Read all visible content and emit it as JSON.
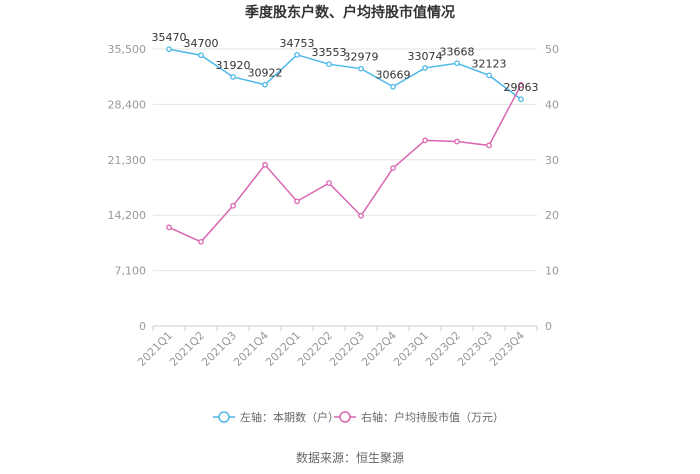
{
  "chart_data": {
    "type": "line",
    "title": "季度股东户数、户均持股市值情况",
    "categories": [
      "2021Q1",
      "2021Q2",
      "2021Q3",
      "2021Q4",
      "2022Q1",
      "2022Q2",
      "2022Q3",
      "2022Q4",
      "2023Q1",
      "2023Q2",
      "2023Q3",
      "2023Q4"
    ],
    "y_left": {
      "ticks": [
        "0",
        "7,100",
        "14,200",
        "21,300",
        "28,400",
        "35,500"
      ],
      "ylim": [
        0,
        35500
      ]
    },
    "y_right": {
      "ticks": [
        "0",
        "10",
        "20",
        "30",
        "40",
        "50"
      ],
      "ylim": [
        0,
        50
      ]
    },
    "series": [
      {
        "name": "左轴：本期数（户）",
        "axis": "left",
        "color": "#4db8e8",
        "values": [
          35470,
          34700,
          31920,
          30922,
          34753,
          33553,
          32979,
          30669,
          33074,
          33668,
          32123,
          29063
        ],
        "labels": [
          "35470",
          "34700",
          "31920",
          "30922",
          "34753",
          "33553",
          "32979",
          "30669",
          "33074",
          "33668",
          "32123",
          "29063"
        ]
      },
      {
        "name": "右轴：户均持股市值（万元）",
        "axis": "right",
        "color": "#d966b0",
        "values": [
          17.8,
          15.2,
          21.7,
          29.1,
          22.5,
          25.8,
          19.9,
          28.5,
          33.5,
          33.3,
          32.6,
          43.5
        ]
      }
    ],
    "grid": true,
    "legend_position": "bottom"
  },
  "source": "数据来源：恒生聚源"
}
